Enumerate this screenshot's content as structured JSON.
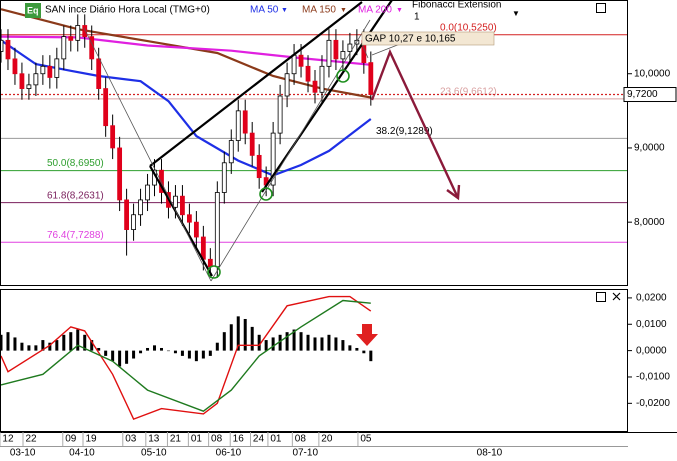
{
  "chart_data": [
    {
      "type": "candlestick",
      "title": "SAN ince Diário Hora Local (TMG+0)",
      "candles": {
        "open": [
          10.3,
          10.45,
          10.2,
          10.0,
          9.8,
          9.85,
          10.0,
          10.1,
          9.95,
          10.2,
          10.5,
          10.45,
          10.65,
          10.5,
          10.2,
          9.8,
          9.3,
          9.0,
          8.3,
          7.9,
          8.1,
          8.3,
          8.5,
          8.7,
          8.4,
          8.2,
          8.35,
          8.1,
          8.0,
          7.8,
          7.5,
          7.4,
          8.4,
          8.8,
          9.1,
          9.5,
          9.2,
          8.9,
          8.6,
          8.5,
          9.2,
          9.7,
          10.0,
          10.25,
          10.1,
          9.9,
          9.75,
          10.1,
          10.45,
          10.2,
          10.3,
          10.4,
          10.45,
          10.15
        ],
        "high": [
          10.6,
          10.6,
          10.35,
          10.15,
          10.0,
          10.15,
          10.25,
          10.25,
          10.35,
          10.65,
          10.65,
          10.8,
          10.8,
          10.65,
          10.35,
          9.95,
          9.45,
          9.15,
          8.45,
          8.25,
          8.45,
          8.65,
          8.85,
          8.85,
          8.55,
          8.5,
          8.5,
          8.25,
          8.15,
          7.95,
          7.65,
          8.55,
          8.95,
          9.25,
          9.65,
          9.65,
          9.35,
          9.05,
          8.75,
          9.35,
          9.85,
          10.15,
          10.4,
          10.4,
          10.25,
          10.05,
          10.25,
          10.6,
          10.6,
          10.45,
          10.55,
          10.6,
          10.6,
          10.3
        ],
        "low": [
          10.15,
          10.05,
          9.85,
          9.65,
          9.65,
          9.7,
          9.85,
          9.8,
          9.8,
          10.05,
          10.3,
          10.3,
          10.35,
          10.05,
          9.65,
          9.15,
          8.85,
          8.15,
          7.55,
          7.75,
          7.95,
          8.15,
          8.35,
          8.25,
          8.05,
          8.05,
          7.95,
          7.85,
          7.65,
          7.35,
          7.25,
          7.25,
          8.25,
          8.65,
          8.95,
          9.05,
          8.75,
          8.45,
          8.35,
          8.35,
          9.05,
          9.55,
          9.85,
          9.95,
          9.75,
          9.6,
          9.6,
          9.95,
          10.05,
          10.05,
          10.15,
          10.25,
          10.0,
          9.57
        ],
        "close": [
          10.45,
          10.2,
          10.0,
          9.8,
          9.85,
          10.0,
          10.1,
          9.95,
          10.2,
          10.5,
          10.45,
          10.65,
          10.5,
          10.2,
          9.8,
          9.3,
          9.0,
          8.3,
          7.9,
          8.1,
          8.3,
          8.5,
          8.7,
          8.4,
          8.2,
          8.35,
          8.1,
          8.0,
          7.8,
          7.5,
          7.4,
          8.4,
          8.8,
          9.1,
          9.5,
          9.2,
          8.9,
          8.6,
          8.5,
          9.2,
          9.7,
          10.0,
          10.25,
          10.1,
          9.9,
          9.75,
          10.1,
          10.45,
          10.2,
          10.3,
          10.4,
          10.45,
          10.15,
          9.72
        ]
      },
      "up_color": "#ffffff",
      "down_color": "#e0001b",
      "series": [
        {
          "name": "MA 50",
          "color": "#1e2fe6",
          "x": [
            0,
            5,
            10,
            14,
            20,
            24,
            28,
            34,
            39,
            43,
            47,
            53
          ],
          "values": [
            10.45,
            10.13,
            10.04,
            9.97,
            9.9,
            9.63,
            9.16,
            8.83,
            8.63,
            8.77,
            8.96,
            9.39
          ]
        },
        {
          "name": "MA 150",
          "color": "#8b3a1a",
          "x": [
            0,
            11,
            21,
            31,
            39,
            46,
            53
          ],
          "values": [
            10.87,
            10.6,
            10.44,
            10.28,
            9.97,
            9.8,
            9.68
          ]
        },
        {
          "name": "MA 200",
          "color": "#e020e0",
          "x": [
            0,
            11,
            21,
            33,
            43,
            53
          ],
          "values": [
            10.5,
            10.49,
            10.38,
            10.31,
            10.21,
            10.12
          ]
        }
      ],
      "ylim": [
        7.14,
        10.98
      ],
      "yticks": [
        {
          "value": 10,
          "label": "10,0000"
        },
        {
          "value": 9,
          "label": "9,0000"
        },
        {
          "value": 8,
          "label": "8,0000"
        }
      ],
      "xlim": [
        0,
        90
      ],
      "xticks": [
        {
          "value": 1,
          "label": "12"
        },
        {
          "value": 4.3,
          "label": "22"
        },
        {
          "value": 10,
          "label": "09"
        },
        {
          "value": 12.9,
          "label": "19"
        },
        {
          "value": 18.6,
          "label": "03"
        },
        {
          "value": 21.9,
          "label": "13"
        },
        {
          "value": 25,
          "label": "21"
        },
        {
          "value": 28,
          "label": "01"
        },
        {
          "value": 30.9,
          "label": "08"
        },
        {
          "value": 34,
          "label": "16"
        },
        {
          "value": 36.9,
          "label": "24"
        },
        {
          "value": 39.4,
          "label": "01"
        },
        {
          "value": 42.9,
          "label": "08"
        },
        {
          "value": 46.7,
          "label": "20"
        },
        {
          "value": 52.3,
          "label": "05"
        }
      ],
      "month_ticks": [
        {
          "value": 3.1,
          "label": "03-10"
        },
        {
          "value": 11.6,
          "label": "04-10"
        },
        {
          "value": 21.9,
          "label": "05-10"
        },
        {
          "value": 32.6,
          "label": "06-10"
        },
        {
          "value": 43.6,
          "label": "07-10"
        },
        {
          "value": 70,
          "label": "08-10"
        }
      ],
      "fibonacci": {
        "name": "Fibonacci Extension",
        "label": "1",
        "levels": [
          {
            "value": 10.525,
            "label": "0.0(10,5250)",
            "color": "#d42020"
          },
          {
            "value": 9.6612,
            "label": "23.6(9,6612)",
            "color": "#d9a0a0"
          },
          {
            "value": 9.1289,
            "label": "38.2(9,1289)",
            "color": "#9a9a9a"
          },
          {
            "value": 8.695,
            "label": "50.0(8,6950)",
            "color": "#2e9e2e"
          },
          {
            "value": 8.2631,
            "label": "61.8(8,2631)",
            "color": "#7a1f5c"
          },
          {
            "value": 7.7288,
            "label": "76.4(7,7288)",
            "color": "#e040e0"
          }
        ]
      },
      "annotation": "GAP 10,27 e 10,165",
      "last_price": {
        "value": 9.72,
        "label": "9,7200",
        "color": "#d42020"
      }
    },
    {
      "type": "macd",
      "histogram": {
        "color": "#000000",
        "values": [
          0.006,
          0.007,
          0.005,
          0.003,
          0.002,
          0.002,
          0.004,
          0.003,
          0.004,
          0.006,
          0.007,
          0.008,
          0.006,
          0.004,
          0.001,
          -0.002,
          -0.004,
          -0.006,
          -0.005,
          -0.003,
          -0.001,
          0.001,
          0.002,
          0.001,
          0.0,
          -0.001,
          -0.002,
          -0.003,
          -0.004,
          -0.003,
          -0.002,
          0.003,
          0.007,
          0.01,
          0.013,
          0.012,
          0.009,
          0.006,
          0.004,
          0.005,
          0.006,
          0.007,
          0.008,
          0.007,
          0.006,
          0.005,
          0.005,
          0.006,
          0.005,
          0.004,
          0.002,
          0.001,
          -0.001,
          -0.004
        ]
      },
      "series": [
        {
          "color": "#e01010",
          "x": [
            0,
            1,
            7,
            10,
            12,
            16,
            19,
            23,
            29,
            31,
            34,
            37,
            41,
            47,
            50,
            53
          ],
          "values": [
            -0.002,
            -0.008,
            0.002,
            0.009,
            0.0075,
            -0.009,
            -0.026,
            -0.022,
            -0.024,
            -0.02,
            0.002,
            0.002,
            0.017,
            0.0205,
            0.0205,
            0.015
          ]
        },
        {
          "color": "#1f7a1f",
          "x": [
            0,
            6,
            11,
            16,
            21,
            29,
            33,
            37,
            43,
            49,
            53
          ],
          "values": [
            -0.013,
            -0.009,
            0.002,
            -0.004,
            -0.015,
            -0.023,
            -0.015,
            -0.002,
            0.009,
            0.019,
            0.018
          ]
        }
      ],
      "ylim": [
        -0.0305,
        0.023
      ],
      "yticks": [
        {
          "value": 0.02,
          "label": "0,0200"
        },
        {
          "value": 0.01,
          "label": "0,0100"
        },
        {
          "value": 0,
          "label": "0,0000"
        },
        {
          "value": -0.01,
          "label": "-0,0100"
        },
        {
          "value": -0.02,
          "label": "-0,0200"
        }
      ]
    }
  ]
}
